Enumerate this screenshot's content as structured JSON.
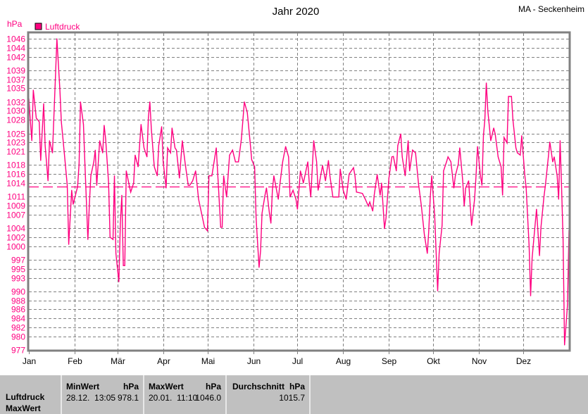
{
  "header": {
    "title": "Jahr 2020",
    "station": "MA - Seckenheim",
    "unit": "hPa"
  },
  "legend": {
    "label": "Luftdruck",
    "color": "#ff0080"
  },
  "chart_data": {
    "type": "line",
    "title": "Jahr 2020",
    "ylabel": "hPa",
    "xlabel": "",
    "ylim": [
      977,
      1046
    ],
    "xlim_days": [
      0,
      366
    ],
    "grid": true,
    "legend_position": "top-left",
    "reference_line": 1013.25,
    "y_ticks": [
      1046,
      1044,
      1042,
      1039,
      1037,
      1035,
      1032,
      1030,
      1028,
      1025,
      1023,
      1021,
      1018,
      1016,
      1014,
      1011,
      1009,
      1007,
      1004,
      1002,
      1000,
      997,
      995,
      993,
      990,
      988,
      986,
      984,
      982,
      980,
      977
    ],
    "x_ticks": [
      {
        "label": "Jan",
        "day": 0
      },
      {
        "label": "Feb",
        "day": 31
      },
      {
        "label": "Mär",
        "day": 60
      },
      {
        "label": "Apr",
        "day": 91
      },
      {
        "label": "Mai",
        "day": 121
      },
      {
        "label": "Jun",
        "day": 152
      },
      {
        "label": "Jul",
        "day": 182
      },
      {
        "label": "Aug",
        "day": 213
      },
      {
        "label": "Sep",
        "day": 244
      },
      {
        "label": "Okt",
        "day": 274
      },
      {
        "label": "Nov",
        "day": 305
      },
      {
        "label": "Dez",
        "day": 335
      }
    ],
    "series": [
      {
        "name": "Luftdruck",
        "color": "#ff0080",
        "day": [
          0,
          1,
          2,
          3,
          5,
          7,
          8,
          10,
          11,
          13,
          14,
          16,
          18,
          19,
          21,
          22,
          24,
          26,
          27,
          29,
          30,
          33,
          34,
          35,
          37,
          38,
          40,
          41,
          42,
          44,
          45,
          46,
          48,
          50,
          51,
          52,
          54,
          55,
          57,
          58,
          59,
          61,
          62,
          63,
          64,
          65,
          66,
          68,
          69,
          71,
          72,
          74,
          76,
          78,
          80,
          81,
          82,
          83,
          85,
          87,
          88,
          90,
          91,
          93,
          94,
          96,
          97,
          99,
          100,
          102,
          104,
          106,
          108,
          109,
          111,
          113,
          115,
          117,
          119,
          121,
          122,
          124,
          127,
          128,
          130,
          131,
          132,
          134,
          136,
          138,
          140,
          142,
          144,
          146,
          148,
          150,
          151,
          153,
          154,
          156,
          157,
          158,
          160,
          161,
          163,
          164,
          165,
          166,
          169,
          170,
          172,
          174,
          176,
          177,
          179,
          181,
          182,
          184,
          186,
          189,
          190,
          191,
          193,
          195,
          196,
          199,
          201,
          203,
          204,
          206,
          208,
          210,
          211,
          213,
          215,
          217,
          220,
          221,
          222,
          226,
          228,
          230,
          231,
          233,
          234,
          236,
          238,
          239,
          241,
          242,
          244,
          246,
          247,
          249,
          250,
          252,
          253,
          255,
          257,
          258,
          260,
          262,
          264,
          266,
          268,
          270,
          271,
          272,
          273,
          275,
          277,
          278,
          280,
          281,
          283,
          284,
          286,
          288,
          289,
          291,
          292,
          294,
          295,
          296,
          298,
          299,
          300,
          302,
          303,
          304,
          306,
          307,
          308,
          309,
          310,
          311,
          313,
          315,
          316,
          318,
          320,
          321,
          322,
          324,
          325,
          327,
          328,
          330,
          331,
          333,
          334,
          336,
          337,
          339,
          340,
          341,
          342,
          344,
          346,
          347,
          349,
          350,
          352,
          353,
          355,
          356,
          358,
          359,
          360,
          361,
          362,
          363,
          365,
          366
        ],
        "values": [
          1032.7,
          1027.7,
          1023.4,
          1034.6,
          1028.4,
          1027.6,
          1019.0,
          1031.6,
          1022.3,
          1014.5,
          1023.4,
          1020.7,
          1037.4,
          1046.0,
          1034.8,
          1027.6,
          1020.7,
          1013.5,
          1000.4,
          1012.4,
          1009.3,
          1013.2,
          1018.2,
          1032.0,
          1027.0,
          1018.2,
          1001.5,
          1009.3,
          1015.6,
          1018.7,
          1021.3,
          1013.5,
          1023.4,
          1020.7,
          1026.8,
          1023.8,
          1014.0,
          1002.0,
          1001.5,
          1015.6,
          998.4,
          992.1,
          1005.1,
          1011.3,
          995.7,
          995.7,
          1016.7,
          1013.5,
          1012.0,
          1014.0,
          1020.2,
          1017.6,
          1027.0,
          1021.8,
          1019.8,
          1028.5,
          1032.0,
          1026.0,
          1017.6,
          1015.6,
          1022.3,
          1026.5,
          1018.7,
          1012.9,
          1021.8,
          1020.7,
          1026.2,
          1021.8,
          1021.3,
          1015.1,
          1023.4,
          1018.2,
          1013.5,
          1013.5,
          1014.5,
          1016.7,
          1010.4,
          1007.3,
          1004.2,
          1003.4,
          1015.6,
          1015.6,
          1021.8,
          1016.0,
          1004.2,
          1004.2,
          1015.6,
          1010.9,
          1020.2,
          1021.3,
          1018.7,
          1018.7,
          1023.8,
          1032.0,
          1029.6,
          1022.9,
          1019.2,
          1017.6,
          1006.2,
          995.3,
          998.9,
          1007.3,
          1011.3,
          1012.9,
          1007.3,
          1005.1,
          1012.4,
          1015.6,
          1010.4,
          1013.5,
          1018.7,
          1022.1,
          1019.8,
          1010.9,
          1012.4,
          1010.4,
          1008.2,
          1016.7,
          1014.0,
          1018.7,
          1014.0,
          1010.9,
          1023.4,
          1018.7,
          1012.4,
          1017.9,
          1014.5,
          1019.0,
          1015.6,
          1010.9,
          1010.9,
          1010.9,
          1017.1,
          1012.4,
          1010.4,
          1016.0,
          1017.4,
          1015.6,
          1012.0,
          1011.7,
          1010.4,
          1008.9,
          1009.8,
          1007.8,
          1011.3,
          1015.9,
          1011.3,
          1014.0,
          1003.9,
          1006.2,
          1015.1,
          1019.8,
          1019.9,
          1016.7,
          1022.3,
          1024.9,
          1019.8,
          1015.6,
          1023.4,
          1016.7,
          1021.3,
          1020.7,
          1014.0,
          1008.9,
          1002.6,
          998.4,
          1003.5,
          1010.9,
          1015.6,
          1006.7,
          990.1,
          998.4,
          1004.6,
          1016.7,
          1018.7,
          1019.8,
          1018.7,
          1012.9,
          1015.6,
          1018.2,
          1021.8,
          1014.5,
          1008.9,
          1012.9,
          1014.5,
          1009.3,
          1004.6,
          1010.4,
          1015.6,
          1022.1,
          1015.6,
          1013.5,
          1024.5,
          1028.0,
          1036.2,
          1030.1,
          1023.4,
          1026.2,
          1024.9,
          1019.8,
          1017.6,
          1011.3,
          1024.1,
          1022.9,
          1033.2,
          1033.2,
          1028.0,
          1021.8,
          1020.7,
          1020.2,
          1024.5,
          1016.0,
          1012.9,
          1000.0,
          989.0,
          997.3,
          1001.0,
          1008.2,
          997.9,
          1004.2,
          1010.9,
          1013.5,
          1019.8,
          1023.1,
          1018.7,
          1019.8,
          1015.6,
          1010.4,
          1023.4,
          1012.9,
          1001.5,
          978.1,
          987.0,
          1003.5
        ]
      }
    ]
  },
  "stats": {
    "row_labels": [
      "Luftdruck",
      "MaxWert"
    ],
    "columns": [
      {
        "header": "MinWert",
        "unit": "hPa",
        "date": "28.12.  13:05",
        "value": "978.1"
      },
      {
        "header": "MaxWert",
        "unit": "hPa",
        "date": "20.01.  11:10",
        "value": "1046.0"
      },
      {
        "header": "Durchschnitt",
        "unit": "hPa",
        "date": "",
        "value": "1015.7"
      }
    ]
  }
}
